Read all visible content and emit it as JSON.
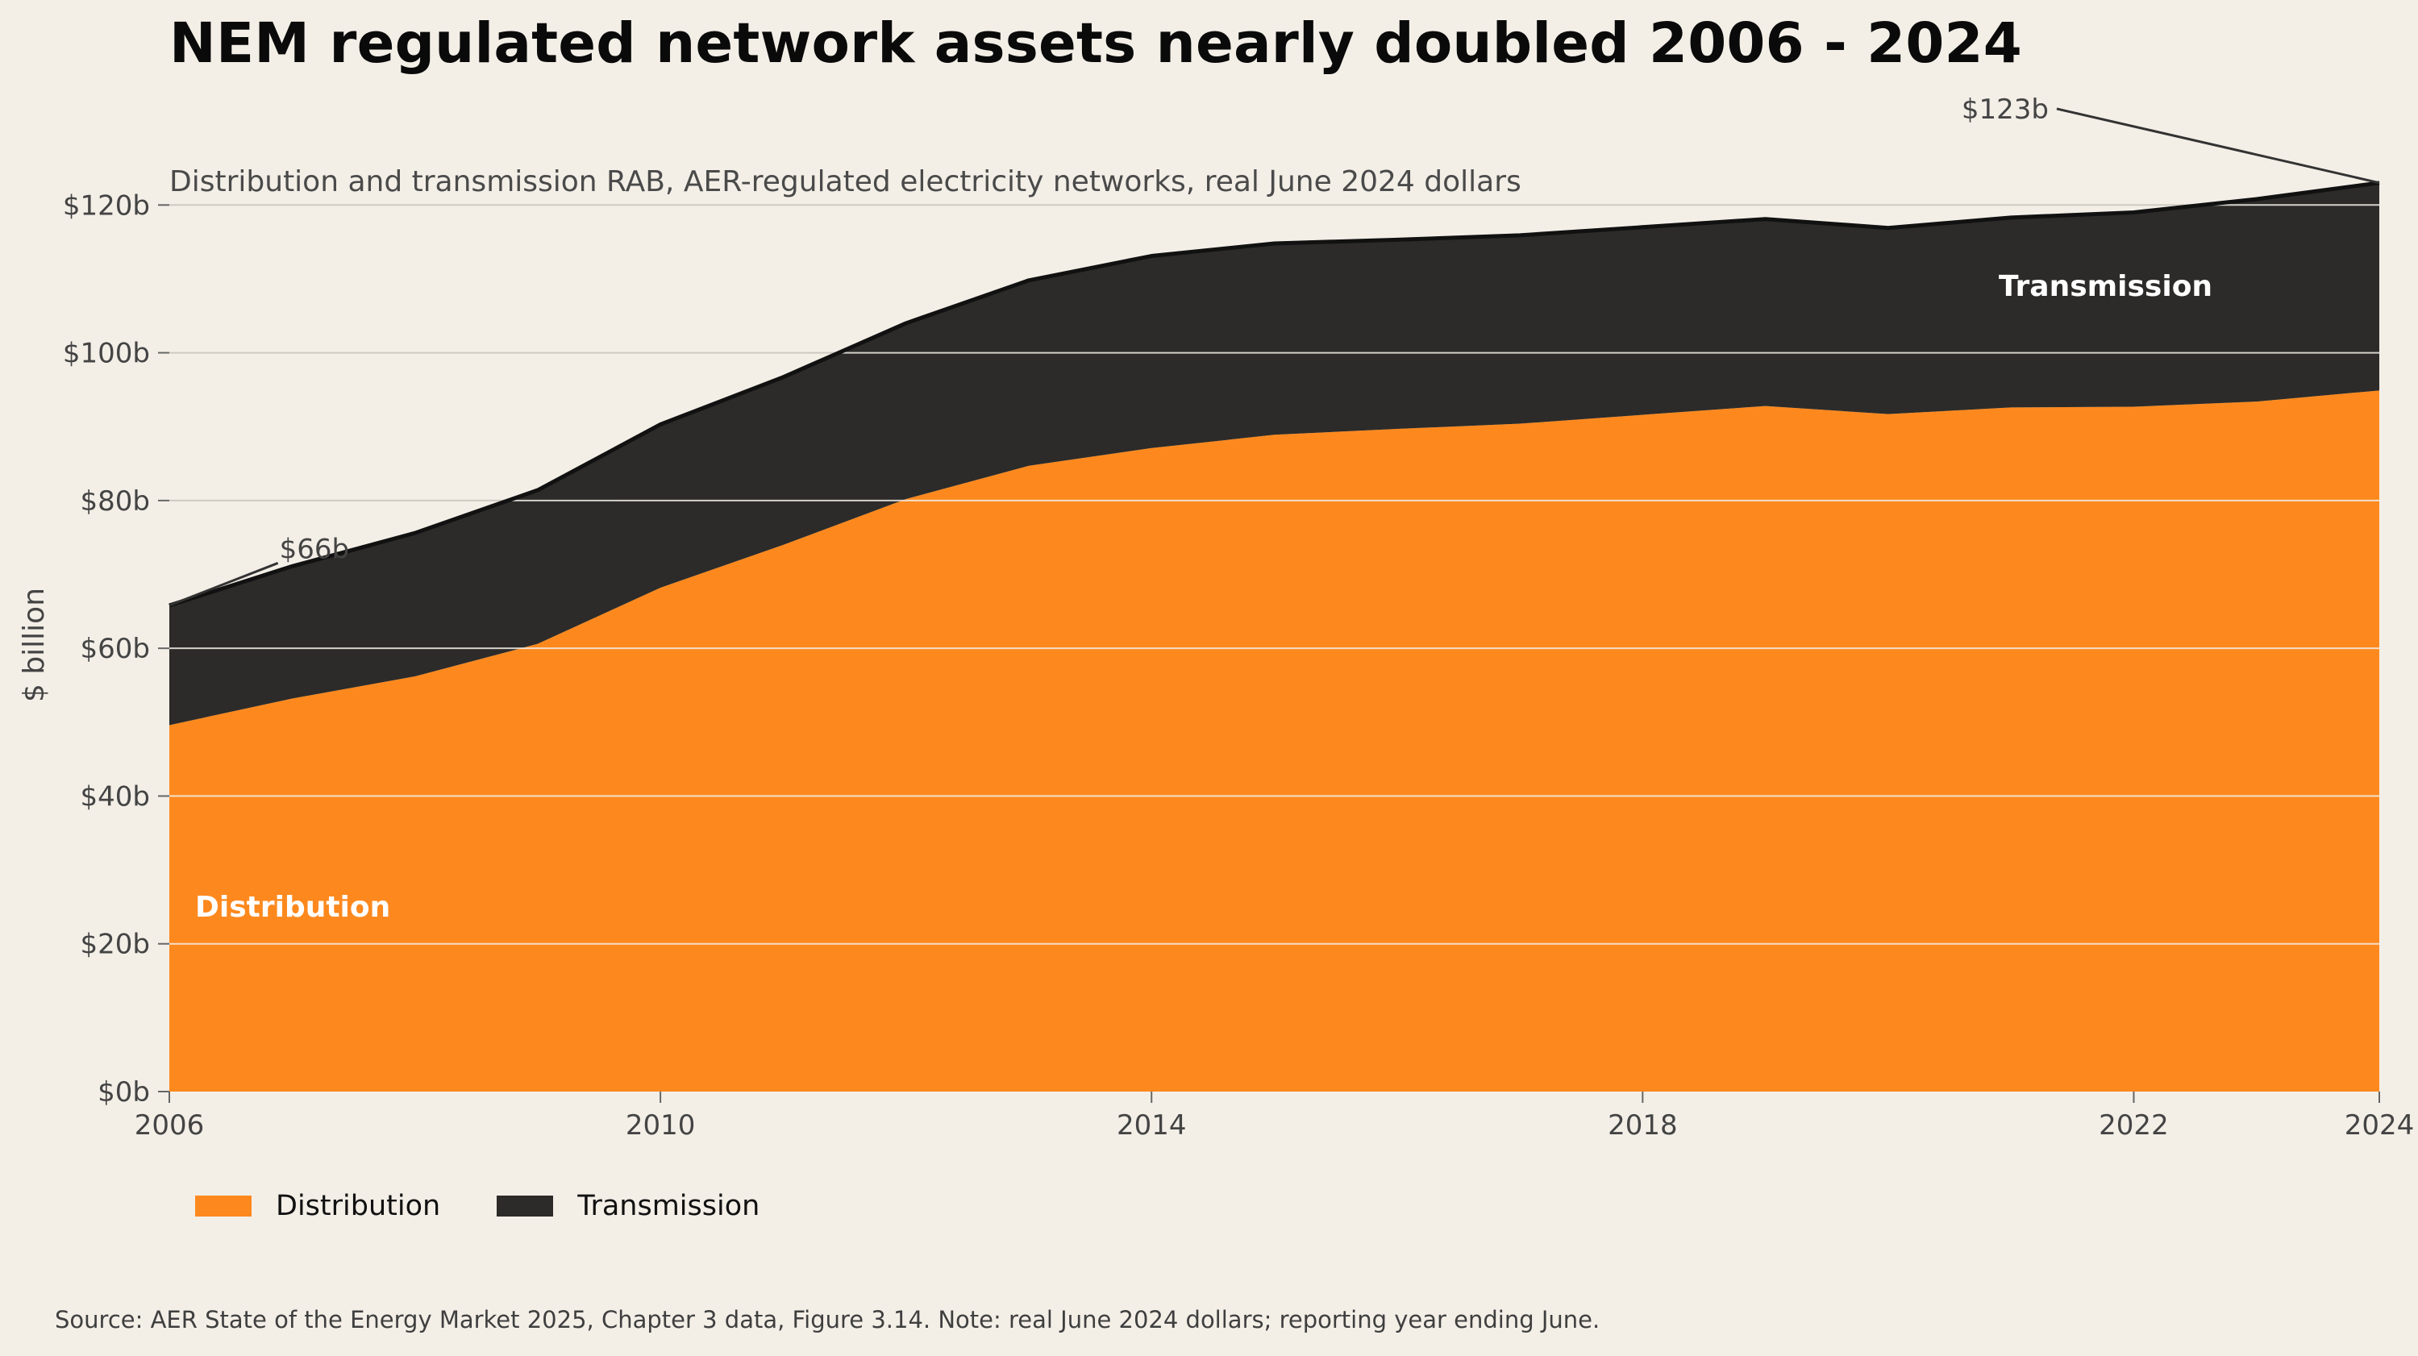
{
  "title": "NEM regulated network assets nearly doubled 2006 - 2024",
  "subtitle": "Distribution and transmission RAB, AER-regulated electricity networks, real June 2024 dollars",
  "source": "Source: AER State of the Energy Market 2025, Chapter 3 data, Figure 3.14. Note: real June 2024 dollars; reporting year ending June.",
  "colors": {
    "background": "#f3efe7",
    "distribution": "#fd891e",
    "transmission": "#2c2b29",
    "outline": "#111111",
    "grid_light": "#f3efe7",
    "grid_dark": "#cfcac1",
    "axis_text": "#444444"
  },
  "chart_data": {
    "type": "area",
    "stacked": true,
    "x": [
      2006,
      2007,
      2008,
      2009,
      2010,
      2011,
      2012,
      2013,
      2014,
      2015,
      2016,
      2017,
      2018,
      2019,
      2020,
      2021,
      2022,
      2023,
      2024
    ],
    "series": [
      {
        "name": "Distribution",
        "values": [
          49.6,
          53.2,
          56.2,
          60.6,
          68.2,
          74.0,
          80.2,
          84.7,
          87.1,
          88.9,
          89.7,
          90.4,
          91.6,
          92.8,
          91.7,
          92.6,
          92.7,
          93.4,
          94.9
        ]
      },
      {
        "name": "Transmission",
        "values": [
          16.2,
          17.9,
          19.4,
          20.8,
          22.1,
          22.7,
          23.8,
          25.1,
          26.0,
          25.9,
          25.6,
          25.5,
          25.4,
          25.3,
          25.2,
          25.7,
          26.3,
          27.4,
          28.1
        ]
      }
    ],
    "xlabel": "",
    "ylabel": "$ billion",
    "xlim": [
      2006,
      2024
    ],
    "ylim": [
      0,
      120
    ],
    "x_ticks": [
      2006,
      2010,
      2014,
      2018,
      2022,
      2024
    ],
    "x_tick_labels": [
      "2006",
      "2010",
      "2014",
      "2018",
      "2022",
      "2024"
    ],
    "y_ticks": [
      0,
      20,
      40,
      60,
      80,
      100,
      120
    ],
    "y_tick_labels": [
      "$0b",
      "$20b",
      "$40b",
      "$60b",
      "$80b",
      "$100b",
      "$120b"
    ],
    "grid": true,
    "legend_position": "bottom-left",
    "area_labels": [
      {
        "series": "Distribution",
        "text": "Distribution",
        "x": 2007.0,
        "y": 25
      },
      {
        "series": "Transmission",
        "text": "Transmission",
        "x": 2020.9,
        "y": 109
      }
    ],
    "annotations": [
      {
        "text": "$66b",
        "x": 2006,
        "y": 65.8,
        "label_x": 2006.95,
        "label_y": 73.5
      },
      {
        "text": "$123b",
        "x": 2024,
        "y": 123.0,
        "label_x": 2020.9,
        "label_y": 131.5
      }
    ]
  }
}
